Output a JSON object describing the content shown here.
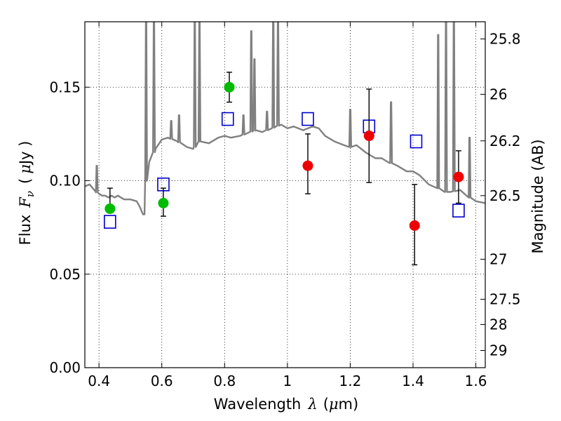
{
  "chart_data": {
    "type": "scatter",
    "title": "",
    "xlabel": "Wavelength",
    "xlabel_symbol": "λ",
    "xlabel_unit_open": "(",
    "xlabel_unit_mu": "μ",
    "xlabel_unit_rest": "m)",
    "ylabel": "Flux",
    "ylabel_symbol": "F",
    "ylabel_subscript": "ν",
    "ylabel_unit_open": "(",
    "ylabel_unit_mu": "μ",
    "ylabel_unit_rest": "Jy )",
    "y2label": "Magnitude (AB)",
    "xlim": [
      0.355,
      1.63
    ],
    "ylim": [
      0.0,
      0.185
    ],
    "grid": true,
    "grid_style": "dotted",
    "x_ticks": [
      0.4,
      0.6,
      0.8,
      1.0,
      1.2,
      1.4,
      1.6
    ],
    "x_tick_labels": [
      "0.4",
      "0.6",
      "0.8",
      "1",
      "1.2",
      "1.4",
      "1.6"
    ],
    "y_ticks": [
      0.0,
      0.05,
      0.1,
      0.15
    ],
    "y_tick_labels": [
      "0.00",
      "0.05",
      "0.10",
      "0.15"
    ],
    "y2_tick_labels": [
      {
        "label": "25.8",
        "flux": 0.1758
      },
      {
        "label": "26",
        "flux": 0.1462
      },
      {
        "label": "26.2",
        "flux": 0.1213
      },
      {
        "label": "26.5",
        "flux": 0.092
      },
      {
        "label": "27",
        "flux": 0.058
      },
      {
        "label": "27.5",
        "flux": 0.0366
      },
      {
        "label": "28",
        "flux": 0.0231
      },
      {
        "label": "29",
        "flux": 0.0092
      }
    ],
    "colors": {
      "spectrum": "#808080",
      "green_points": "#00bb00",
      "red_points": "#ee0000",
      "model_squares": "#0000cc",
      "error_bars": "#000000"
    },
    "series": [
      {
        "marker": "circle",
        "color": "green",
        "x": [
          0.435,
          0.605,
          0.815
        ],
        "y": [
          0.085,
          0.088,
          0.15
        ],
        "y_err_low": [
          0.085,
          0.081,
          0.142
        ],
        "y_err_high": [
          0.096,
          0.096,
          0.158
        ]
      },
      {
        "marker": "circle",
        "color": "red",
        "x": [
          1.065,
          1.26,
          1.405,
          1.545
        ],
        "y": [
          0.108,
          0.124,
          0.076,
          0.102
        ],
        "y_err_low": [
          0.093,
          0.099,
          0.055,
          0.088
        ],
        "y_err_high": [
          0.125,
          0.149,
          0.098,
          0.116
        ]
      },
      {
        "marker": "open-square",
        "color": "blue",
        "x": [
          0.435,
          0.605,
          0.81,
          1.065,
          1.26,
          1.41,
          1.545
        ],
        "y": [
          0.078,
          0.098,
          0.133,
          0.133,
          0.129,
          0.121,
          0.084
        ]
      }
    ],
    "spectrum": {
      "x": [
        0.355,
        0.37,
        0.38,
        0.39,
        0.4,
        0.41,
        0.42,
        0.43,
        0.44,
        0.45,
        0.46,
        0.48,
        0.5,
        0.52,
        0.53,
        0.54,
        0.545,
        0.55,
        0.56,
        0.58,
        0.6,
        0.62,
        0.65,
        0.68,
        0.7,
        0.72,
        0.75,
        0.78,
        0.8,
        0.82,
        0.85,
        0.88,
        0.9,
        0.92,
        0.95,
        0.98,
        1.0,
        1.02,
        1.05,
        1.08,
        1.1,
        1.12,
        1.15,
        1.18,
        1.2,
        1.22,
        1.25,
        1.28,
        1.3,
        1.32,
        1.35,
        1.38,
        1.4,
        1.42,
        1.45,
        1.48,
        1.5,
        1.52,
        1.55,
        1.58,
        1.6,
        1.63
      ],
      "y": [
        0.097,
        0.098,
        0.096,
        0.094,
        0.093,
        0.092,
        0.092,
        0.091,
        0.092,
        0.091,
        0.092,
        0.09,
        0.09,
        0.089,
        0.086,
        0.082,
        0.082,
        0.1,
        0.11,
        0.117,
        0.122,
        0.123,
        0.121,
        0.118,
        0.117,
        0.121,
        0.12,
        0.123,
        0.124,
        0.123,
        0.124,
        0.126,
        0.127,
        0.126,
        0.128,
        0.13,
        0.128,
        0.129,
        0.127,
        0.129,
        0.128,
        0.124,
        0.121,
        0.119,
        0.118,
        0.119,
        0.115,
        0.112,
        0.112,
        0.11,
        0.108,
        0.105,
        0.105,
        0.103,
        0.098,
        0.096,
        0.094,
        0.094,
        0.095,
        0.091,
        0.089,
        0.088
      ]
    },
    "spectrum_lines": [
      {
        "x": 0.393,
        "peak": 0.108
      },
      {
        "x": 0.55,
        "peak": 0.185
      },
      {
        "x": 0.575,
        "peak": 0.185
      },
      {
        "x": 0.63,
        "peak": 0.132
      },
      {
        "x": 0.655,
        "peak": 0.135
      },
      {
        "x": 0.705,
        "peak": 0.185
      },
      {
        "x": 0.72,
        "peak": 0.185
      },
      {
        "x": 0.86,
        "peak": 0.135
      },
      {
        "x": 0.885,
        "peak": 0.18
      },
      {
        "x": 0.895,
        "peak": 0.165
      },
      {
        "x": 0.935,
        "peak": 0.137
      },
      {
        "x": 0.955,
        "peak": 0.185
      },
      {
        "x": 0.97,
        "peak": 0.185
      },
      {
        "x": 1.2,
        "peak": 0.138
      },
      {
        "x": 1.33,
        "peak": 0.142
      },
      {
        "x": 1.48,
        "peak": 0.178
      },
      {
        "x": 1.505,
        "peak": 0.185
      },
      {
        "x": 1.53,
        "peak": 0.185
      },
      {
        "x": 1.58,
        "peak": 0.123
      }
    ]
  }
}
